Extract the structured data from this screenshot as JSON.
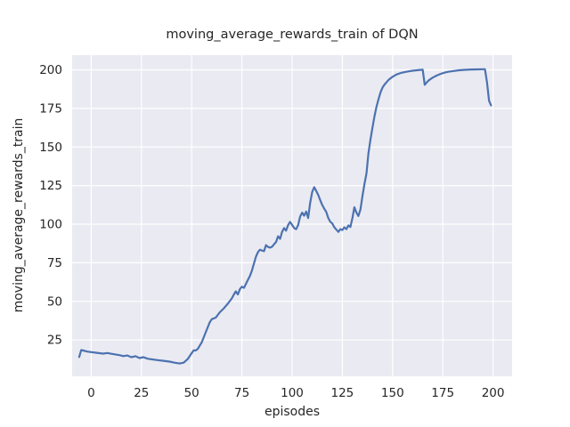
{
  "figure": {
    "title": "moving_average_rewards_train of DQN",
    "xlabel": "episodes",
    "ylabel": "moving_average_rewards_train"
  },
  "colors": {
    "line": "#4c72b0",
    "plot_background": "#eaeaf2",
    "grid": "#ffffff",
    "text": "#262626",
    "figure_background": "#ffffff"
  },
  "chart_data": {
    "type": "line",
    "title": "moving_average_rewards_train of DQN",
    "xlabel": "episodes",
    "ylabel": "moving_average_rewards_train",
    "xlim": [
      -9.5,
      209.5
    ],
    "ylim": [
      1.5,
      209.5
    ],
    "x_ticks": [
      0,
      25,
      50,
      75,
      100,
      125,
      150,
      175,
      200
    ],
    "y_ticks": [
      25,
      50,
      75,
      100,
      125,
      150,
      175,
      200
    ],
    "grid": true,
    "legend": false,
    "series": [
      {
        "name": "moving_average_rewards_train",
        "color": "#4c72b0",
        "x": [
          -6,
          -5,
          -4,
          -2,
          0,
          2,
          4,
          6,
          8,
          10,
          12,
          14,
          16,
          18,
          20,
          22,
          24,
          26,
          28,
          30,
          33,
          36,
          39,
          42,
          44,
          46,
          48,
          50,
          51,
          52,
          53,
          55,
          57,
          59,
          60,
          62,
          64,
          66,
          68,
          70,
          71,
          72,
          73,
          74,
          75,
          76,
          78,
          79,
          80,
          81,
          82,
          83,
          84,
          85,
          86,
          87,
          88,
          89,
          90,
          91,
          92,
          93,
          94,
          95,
          96,
          97,
          98,
          99,
          100,
          101,
          102,
          103,
          104,
          105,
          106,
          107,
          108,
          109,
          110,
          111,
          112,
          113,
          114,
          115,
          116,
          117,
          118,
          119,
          120,
          121,
          122,
          123,
          124,
          125,
          126,
          127,
          128,
          129,
          130,
          131,
          132,
          133,
          134,
          135,
          136,
          137,
          138,
          139,
          140,
          141,
          142,
          143,
          144,
          145,
          146,
          147,
          148,
          150,
          152,
          154,
          156,
          158,
          160,
          162,
          164,
          165,
          166,
          167,
          168,
          170,
          172,
          174,
          176,
          178,
          180,
          183,
          186,
          189,
          192,
          195,
          196,
          197,
          198,
          199
        ],
        "y": [
          14,
          18.5,
          18.2,
          17.5,
          17.2,
          16.8,
          16.5,
          16.2,
          16.6,
          16.1,
          15.7,
          15.2,
          14.6,
          15,
          13.9,
          14.5,
          13.3,
          13.9,
          12.9,
          12.5,
          12,
          11.5,
          11,
          10.2,
          9.8,
          10.3,
          12.6,
          16.5,
          18.3,
          18.2,
          19.2,
          23.5,
          30,
          36.5,
          38.5,
          39.5,
          43,
          45.5,
          48.5,
          52,
          54.5,
          56.5,
          54.5,
          58,
          59.5,
          58.8,
          64,
          66.5,
          70,
          74.5,
          79,
          82,
          83.5,
          83,
          82.5,
          86.5,
          85.3,
          84.8,
          85.4,
          87,
          88.5,
          92.2,
          90.5,
          95,
          97.5,
          95.8,
          99.5,
          101.5,
          99.5,
          97.5,
          96.8,
          99.5,
          105,
          107.5,
          105.5,
          108.2,
          104,
          114,
          121,
          124,
          121.5,
          119,
          115.5,
          112.5,
          110,
          108,
          104,
          101.5,
          100.5,
          98,
          96.5,
          95,
          96.8,
          96.2,
          98,
          96.8,
          99.2,
          98.2,
          104,
          111,
          107.5,
          105.3,
          109.5,
          118,
          126,
          133,
          146,
          155,
          162.5,
          170,
          176,
          181,
          185.5,
          188.5,
          190.5,
          192,
          193.5,
          195.5,
          197,
          197.9,
          198.5,
          199,
          199.4,
          199.7,
          200,
          200.1,
          190.3,
          191.8,
          193.2,
          195,
          196.3,
          197.4,
          198.2,
          198.8,
          199.2,
          199.7,
          200,
          200.2,
          200.3,
          200.4,
          200.4,
          192,
          180,
          177
        ]
      }
    ]
  }
}
